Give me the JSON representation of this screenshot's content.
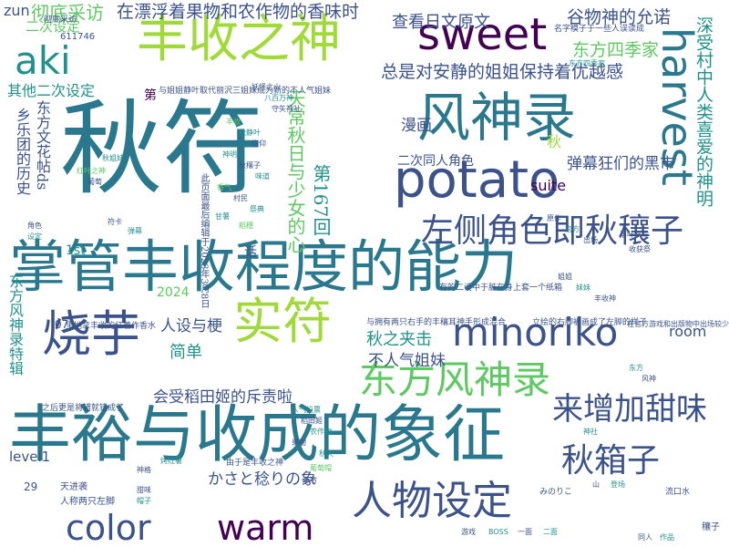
{
  "word_cloud": {
    "background": "#ffffff",
    "palette": [
      "#440154",
      "#3b528b",
      "#21918c",
      "#5ec962",
      "#a0da39"
    ],
    "words": [
      {
        "text": "秋符",
        "color": "#2a788e"
      },
      {
        "text": "掌管丰收程度的能力",
        "color": "#2a788e"
      },
      {
        "text": "丰裕与收成的象征",
        "color": "#2a788e"
      },
      {
        "text": "丰收之神",
        "color": "#a0da39"
      },
      {
        "text": "风神录",
        "color": "#2a788e"
      },
      {
        "text": "potato",
        "color": "#3b528b"
      },
      {
        "text": "sweet",
        "color": "#440154"
      },
      {
        "text": "harvest",
        "color": "#2a788e"
      },
      {
        "text": "烧芋",
        "color": "#3b528b"
      },
      {
        "text": "实符",
        "color": "#a0da39"
      },
      {
        "text": "aki",
        "color": "#21918c"
      },
      {
        "text": "minoriko",
        "color": "#3b528b"
      },
      {
        "text": "color",
        "color": "#3b528b"
      },
      {
        "text": "warm",
        "color": "#440154"
      },
      {
        "text": "人物设定",
        "color": "#3b528b"
      },
      {
        "text": "东方风神录",
        "color": "#5ec962"
      },
      {
        "text": "左侧角色即秋穰子",
        "color": "#3b528b"
      },
      {
        "text": "来增加甜味",
        "color": "#3b528b"
      },
      {
        "text": "秋箱子",
        "color": "#3b528b"
      },
      {
        "text": "彻底采访",
        "color": "#5ec962"
      },
      {
        "text": "在漂浮着果物和农作物的香味时",
        "color": "#3b528b"
      },
      {
        "text": "查看日文原文",
        "color": "#3b528b"
      },
      {
        "text": "谷物神的允诺",
        "color": "#3b528b"
      },
      {
        "text": "东方四季家",
        "color": "#5ec962"
      },
      {
        "text": "总是对安静的姐姐保持着优越感",
        "color": "#3b528b"
      },
      {
        "text": "深受村中人类喜爱的神明",
        "color": "#21918c"
      },
      {
        "text": "天常秋日与少女的心",
        "color": "#5ec962"
      },
      {
        "text": "第167回",
        "color": "#21918c"
      },
      {
        "text": "二次同人角色",
        "color": "#3b528b"
      },
      {
        "text": "弹幕狂们的黑市",
        "color": "#3b528b"
      },
      {
        "text": "suite",
        "color": "#440154"
      },
      {
        "text": "漫画",
        "color": "#3b528b"
      },
      {
        "text": "秋",
        "color": "#a0da39"
      },
      {
        "text": "秋之夹击",
        "color": "#21918c"
      },
      {
        "text": "不人气姐妹",
        "color": "#3b528b"
      },
      {
        "text": "room",
        "color": "#3b528b"
      },
      {
        "text": "会受稻田姬的斥责啦",
        "color": "#3b528b"
      },
      {
        "text": "かさと稔りの象",
        "color": "#3b528b"
      },
      {
        "text": "人设与梗",
        "color": "#3b528b"
      },
      {
        "text": "简单",
        "color": "#21918c"
      },
      {
        "text": "2024",
        "color": "#5ec962"
      },
      {
        "text": "1st",
        "color": "#21918c"
      },
      {
        "text": "level1",
        "color": "#3b528b"
      },
      {
        "text": "zun",
        "color": "#3b528b"
      },
      {
        "text": "二次设定",
        "color": "#5ec962"
      },
      {
        "text": "其他二次设定",
        "color": "#21918c"
      },
      {
        "text": "乡乐团的历史",
        "color": "#3b528b"
      },
      {
        "text": "东方文花帖ds",
        "color": "#3b528b"
      },
      {
        "text": "东方风神录特辑",
        "color": "#21918c"
      },
      {
        "text": "第",
        "color": "#440154"
      },
      {
        "text": "话",
        "color": "#3b528b"
      },
      {
        "text": "29",
        "color": "#3b528b"
      },
      {
        "text": "611746",
        "color": "#3b528b"
      },
      {
        "text": "07",
        "color": "#3b528b"
      },
      {
        "text": "与姐姐静叶取代丽沢三姐妹成为新的不人气姐妹",
        "color": "#3b528b"
      },
      {
        "text": "此页面最后编辑于2023年3月8日",
        "color": "#3b528b"
      },
      {
        "text": "与拥有两只右手的丰穰耳神手形成混合",
        "color": "#3b528b"
      },
      {
        "text": "立绘的右脚被画成了左脚的样子",
        "color": "#3b528b"
      },
      {
        "text": "有的二设中于脏在身上套一个纸箱",
        "color": "#3b528b"
      },
      {
        "text": "名字模子于一些人误读成",
        "color": "#3b528b"
      },
      {
        "text": "里她拿丰收的红薯作香水",
        "color": "#3b528b"
      },
      {
        "text": "之后更是将错就错成了",
        "color": "#3b528b"
      },
      {
        "text": "由于是丰收之神",
        "color": "#3b528b"
      },
      {
        "text": "天进袭",
        "color": "#3b528b"
      },
      {
        "text": "人称两只左脚",
        "color": "#3b528b"
      },
      {
        "text": "彻底采访",
        "color": "#3b528b"
      },
      {
        "text": "みのりこ",
        "color": "#3b528b"
      },
      {
        "text": "流口水",
        "color": "#3b528b"
      },
      {
        "text": "穰子",
        "color": "#3b528b"
      },
      {
        "text": "在官方游戏和出版物中出场较少",
        "color": "#3b528b"
      },
      {
        "text": "东方四季家",
        "color": "#21918c"
      },
      {
        "text": "落叶飘零",
        "color": "#3b528b"
      },
      {
        "text": "收获祭",
        "color": "#3b528b"
      },
      {
        "text": "秋姐妹",
        "color": "#21918c"
      },
      {
        "text": "红叶之神",
        "color": "#5ec962"
      },
      {
        "text": "葡萄",
        "color": "#3b528b"
      },
      {
        "text": "甘薯",
        "color": "#21918c"
      },
      {
        "text": "稻穗",
        "color": "#5ec962"
      },
      {
        "text": "妖怪之山",
        "color": "#3b528b"
      },
      {
        "text": "八百万神",
        "color": "#21918c"
      },
      {
        "text": "守矢神社",
        "color": "#3b528b"
      },
      {
        "text": "丰收",
        "color": "#5ec962"
      },
      {
        "text": "秋静叶",
        "color": "#21918c"
      },
      {
        "text": "信仰",
        "color": "#3b528b"
      },
      {
        "text": "神明",
        "color": "#21918c"
      },
      {
        "text": "秋穰子",
        "color": "#3b528b"
      },
      {
        "text": "味道",
        "color": "#21918c"
      },
      {
        "text": "香气",
        "color": "#5ec962"
      },
      {
        "text": "村民",
        "color": "#3b528b"
      },
      {
        "text": "祭典",
        "color": "#21918c"
      },
      {
        "text": "神格",
        "color": "#3b528b"
      },
      {
        "text": "烤红薯",
        "color": "#21918c"
      },
      {
        "text": "甜味",
        "color": "#3b528b"
      },
      {
        "text": "帽子",
        "color": "#21918c"
      },
      {
        "text": "葡萄帽",
        "color": "#5ec962"
      },
      {
        "text": "季节",
        "color": "#3b528b"
      },
      {
        "text": "人气投票",
        "color": "#21918c"
      },
      {
        "text": "稻田姬",
        "color": "#3b528b"
      },
      {
        "text": "农作物",
        "color": "#21918c"
      },
      {
        "text": "果物",
        "color": "#3b528b"
      },
      {
        "text": "秋天",
        "color": "#21918c"
      },
      {
        "text": "姐姐",
        "color": "#3b528b"
      },
      {
        "text": "妹妹",
        "color": "#21918c"
      },
      {
        "text": "丰收神",
        "color": "#3b528b"
      },
      {
        "text": "东方",
        "color": "#21918c"
      },
      {
        "text": "风神",
        "color": "#3b528b"
      },
      {
        "text": "神社",
        "color": "#21918c"
      },
      {
        "text": "山",
        "color": "#3b528b"
      },
      {
        "text": "登场",
        "color": "#21918c"
      },
      {
        "text": "游戏",
        "color": "#3b528b"
      },
      {
        "text": "BOSS",
        "color": "#21918c"
      },
      {
        "text": "一面",
        "color": "#3b528b"
      },
      {
        "text": "二面",
        "color": "#21918c"
      },
      {
        "text": "符卡",
        "color": "#3b528b"
      },
      {
        "text": "弹幕",
        "color": "#21918c"
      },
      {
        "text": "角色",
        "color": "#3b528b"
      },
      {
        "text": "设定",
        "color": "#21918c"
      },
      {
        "text": "同人",
        "color": "#3b528b"
      },
      {
        "text": "作品",
        "color": "#21918c"
      },
      {
        "text": "原作",
        "color": "#3b528b"
      },
      {
        "text": "官方",
        "color": "#21918c"
      },
      {
        "text": "出场",
        "color": "#3b528b"
      }
    ]
  }
}
